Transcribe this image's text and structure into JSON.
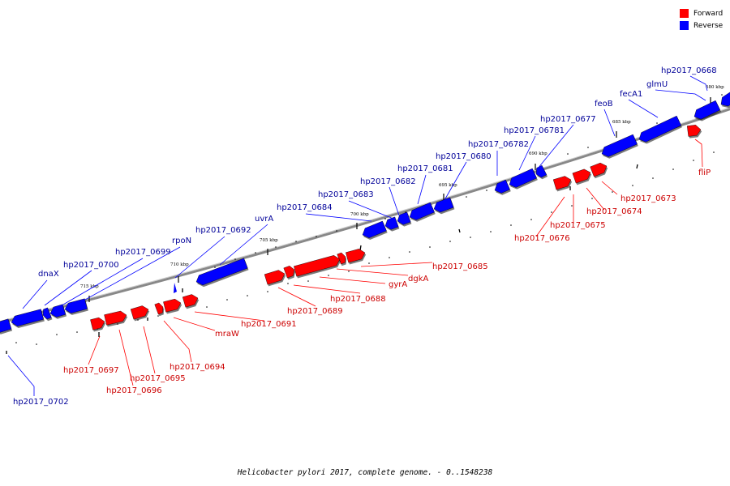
{
  "caption": "Helicobacter pylori 2017, complete genome. - 0..1548238",
  "legend": {
    "forward": {
      "label": "Forward",
      "color": "#ff0000"
    },
    "reverse": {
      "label": "Reverse",
      "color": "#0000ff"
    }
  },
  "colors": {
    "forward_label": "#cc0000",
    "reverse_label": "#000099",
    "backbone": "#888888"
  },
  "scale_labels": [
    "680 kbp",
    "685 kbp",
    "690 kbp",
    "695 kbp",
    "700 kbp",
    "705 kbp",
    "710 kbp",
    "715 kbp"
  ],
  "genes": {
    "reverse": [
      "hp2017_0668",
      "glmU",
      "fecA1",
      "feoB",
      "hp2017_0677",
      "hp2017_06781",
      "hp2017_06782",
      "hp2017_0680",
      "hp2017_0681",
      "hp2017_0682",
      "hp2017_0683",
      "hp2017_0684",
      "uvrA",
      "hp2017_0692",
      "rpoN",
      "hp2017_0699",
      "hp2017_0700",
      "dnaX",
      "hp2017_0702"
    ],
    "forward": [
      "fliP",
      "hp2017_0673",
      "hp2017_0674",
      "hp2017_0675",
      "hp2017_0676",
      "hp2017_0685",
      "dgkA",
      "gyrA",
      "hp2017_0688",
      "hp2017_0689",
      "hp2017_0691",
      "mraW",
      "hp2017_0694",
      "hp2017_0695",
      "hp2017_0696",
      "hp2017_0697"
    ]
  }
}
